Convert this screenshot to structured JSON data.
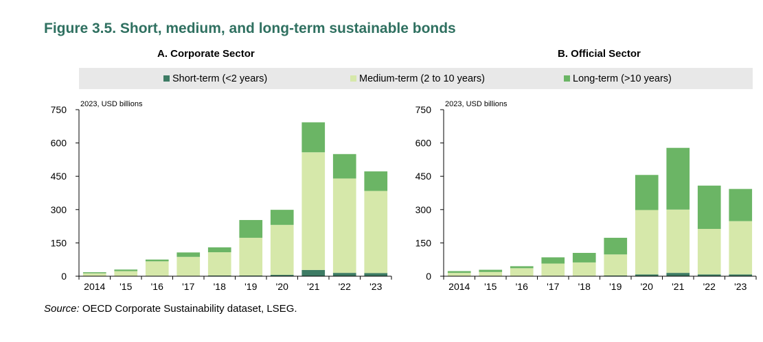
{
  "figure_title": "Figure 3.5. Short, medium, and long-term sustainable bonds",
  "legend": [
    {
      "label": "Short-term (<2 years)",
      "color": "#3d7b64"
    },
    {
      "label": "Medium-term (2 to 10 years)",
      "color": "#d6e8aa"
    },
    {
      "label": "Long-term (>10 years)",
      "color": "#6bb565"
    }
  ],
  "source": {
    "prefix": "Source:",
    "text": "OECD Corporate Sustainability dataset, LSEG."
  },
  "chart_data": [
    {
      "type": "bar",
      "stacked": true,
      "title": "A. Corporate Sector",
      "unit_note": "2023, USD billions",
      "categories": [
        "2014",
        "'15",
        "'16",
        "'17",
        "'18",
        "'19",
        "'20",
        "'21",
        "'22",
        "'23"
      ],
      "yticks": [
        "0",
        "150",
        "300",
        "450",
        "600",
        "750"
      ],
      "ylim": [
        0,
        750
      ],
      "grid": false,
      "series": [
        {
          "name": "Short-term (<2 years)",
          "color": "#3d7b64",
          "values": [
            1,
            1,
            2,
            2,
            3,
            3,
            6,
            28,
            15,
            14
          ]
        },
        {
          "name": "Medium-term (2 to 10 years)",
          "color": "#d6e8aa",
          "values": [
            12,
            22,
            65,
            85,
            105,
            170,
            225,
            530,
            425,
            370
          ]
        },
        {
          "name": "Long-term (>10 years)",
          "color": "#6bb565",
          "values": [
            5,
            7,
            8,
            20,
            22,
            80,
            68,
            135,
            110,
            88
          ]
        }
      ]
    },
    {
      "type": "bar",
      "stacked": true,
      "title": "B. Official Sector",
      "unit_note": "2023, USD billions",
      "categories": [
        "2014",
        "'15",
        "'16",
        "'17",
        "'18",
        "'19",
        "'20",
        "'21",
        "'22",
        "'23"
      ],
      "yticks": [
        "0",
        "150",
        "300",
        "450",
        "600",
        "750"
      ],
      "ylim": [
        0,
        750
      ],
      "grid": false,
      "series": [
        {
          "name": "Short-term (<2 years)",
          "color": "#3d7b64",
          "values": [
            1,
            1,
            1,
            2,
            2,
            3,
            8,
            15,
            8,
            8
          ]
        },
        {
          "name": "Medium-term (2 to 10 years)",
          "color": "#d6e8aa",
          "values": [
            14,
            18,
            35,
            55,
            60,
            95,
            290,
            285,
            205,
            240
          ]
        },
        {
          "name": "Long-term (>10 years)",
          "color": "#6bb565",
          "values": [
            8,
            10,
            9,
            28,
            43,
            75,
            158,
            278,
            195,
            145
          ]
        }
      ]
    }
  ]
}
